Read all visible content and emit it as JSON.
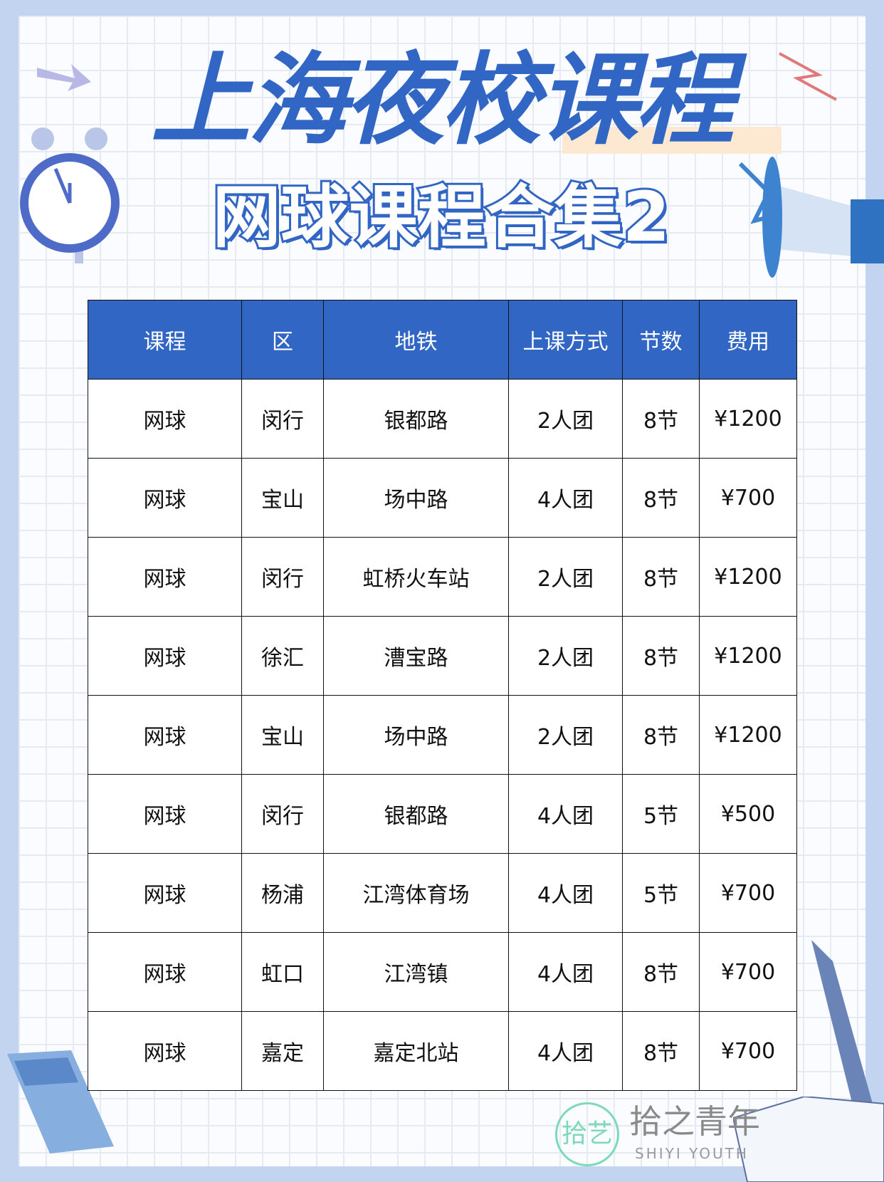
{
  "title": "上海夜校课程",
  "subtitle": "网球课程合集2",
  "colors": {
    "accent": "#3166c4",
    "frame": "#c3d4f0",
    "watermark_green": "#7fd9b8"
  },
  "table": {
    "headers": [
      "课程",
      "区",
      "地铁",
      "上课方式",
      "节数",
      "费用"
    ],
    "rows": [
      [
        "网球",
        "闵行",
        "银都路",
        "2人团",
        "8节",
        "¥1200"
      ],
      [
        "网球",
        "宝山",
        "场中路",
        "4人团",
        "8节",
        "¥700"
      ],
      [
        "网球",
        "闵行",
        "虹桥火车站",
        "2人团",
        "8节",
        "¥1200"
      ],
      [
        "网球",
        "徐汇",
        "漕宝路",
        "2人团",
        "8节",
        "¥1200"
      ],
      [
        "网球",
        "宝山",
        "场中路",
        "2人团",
        "8节",
        "¥1200"
      ],
      [
        "网球",
        "闵行",
        "银都路",
        "4人团",
        "5节",
        "¥500"
      ],
      [
        "网球",
        "杨浦",
        "江湾体育场",
        "4人团",
        "5节",
        "¥700"
      ],
      [
        "网球",
        "虹口",
        "江湾镇",
        "4人团",
        "8节",
        "¥700"
      ],
      [
        "网球",
        "嘉定",
        "嘉定北站",
        "4人团",
        "8节",
        "¥700"
      ]
    ]
  },
  "watermark": {
    "logo": "拾艺",
    "name": "拾之青年",
    "sub": "SHIYI YOUTH"
  }
}
